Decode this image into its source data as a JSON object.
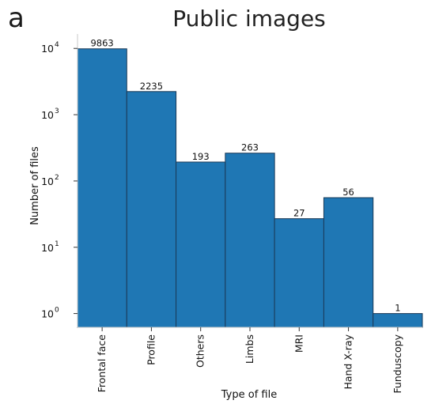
{
  "panel_label": "a",
  "chart_data": {
    "type": "bar",
    "title": "Public images",
    "xlabel": "Type of file",
    "ylabel": "Number of files",
    "yscale": "log",
    "ylim": [
      0.62,
      16500
    ],
    "yticks": [
      {
        "base": "10",
        "exp": "0",
        "value": 1
      },
      {
        "base": "10",
        "exp": "1",
        "value": 10
      },
      {
        "base": "10",
        "exp": "2",
        "value": 100
      },
      {
        "base": "10",
        "exp": "3",
        "value": 1000
      },
      {
        "base": "10",
        "exp": "4",
        "value": 10000
      }
    ],
    "categories": [
      "Frontal face",
      "Profile",
      "Others",
      "Limbs",
      "MRI",
      "Hand X-ray",
      "Funduscopy"
    ],
    "values": [
      9863,
      2235,
      193,
      263,
      27,
      56,
      1
    ],
    "data_labels": [
      "9863",
      "2235",
      "193",
      "263",
      "27",
      "56",
      "1"
    ],
    "bar_color": "#1f77b4",
    "grid": false,
    "legend": "none"
  }
}
